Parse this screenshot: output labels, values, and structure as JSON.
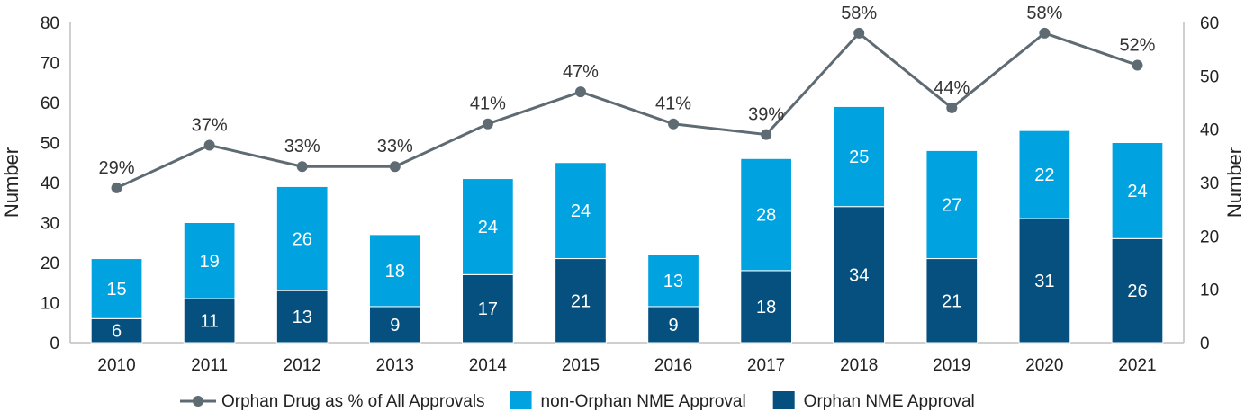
{
  "chart_data": {
    "type": "bar",
    "stacked": true,
    "categories": [
      "2010",
      "2011",
      "2012",
      "2013",
      "2014",
      "2015",
      "2016",
      "2017",
      "2018",
      "2019",
      "2020",
      "2021"
    ],
    "series": [
      {
        "name": "Orphan NME Approval",
        "values": [
          6,
          11,
          13,
          9,
          17,
          21,
          9,
          18,
          34,
          21,
          31,
          26
        ],
        "color": "#05507f",
        "axis": "left"
      },
      {
        "name": "non-Orphan NME Approval",
        "values": [
          15,
          19,
          26,
          18,
          24,
          24,
          13,
          28,
          25,
          27,
          22,
          24
        ],
        "color": "#00a3e0",
        "axis": "left"
      },
      {
        "name": "Orphan Drug as % of All Approvals",
        "type": "line",
        "values": [
          29,
          37,
          33,
          33,
          41,
          47,
          41,
          39,
          58,
          44,
          58,
          52
        ],
        "labels": [
          "29%",
          "37%",
          "33%",
          "33%",
          "41%",
          "47%",
          "41%",
          "39%",
          "58%",
          "44%",
          "58%",
          "52%"
        ],
        "color": "#5f6b73",
        "axis": "right"
      }
    ],
    "ylabel": "Number",
    "y2label": "Number",
    "ylim": [
      0,
      80
    ],
    "y2lim": [
      0,
      60
    ],
    "yticks": [
      "0",
      "10",
      "20",
      "30",
      "40",
      "50",
      "60",
      "70",
      "80"
    ],
    "y2ticks": [
      "0",
      "10",
      "20",
      "30",
      "40",
      "50",
      "60"
    ],
    "grid": false,
    "legend": {
      "placement": "bottom",
      "entries": [
        "Orphan Drug as % of All Approvals",
        "non-Orphan NME Approval",
        "Orphan NME Approval"
      ]
    }
  }
}
